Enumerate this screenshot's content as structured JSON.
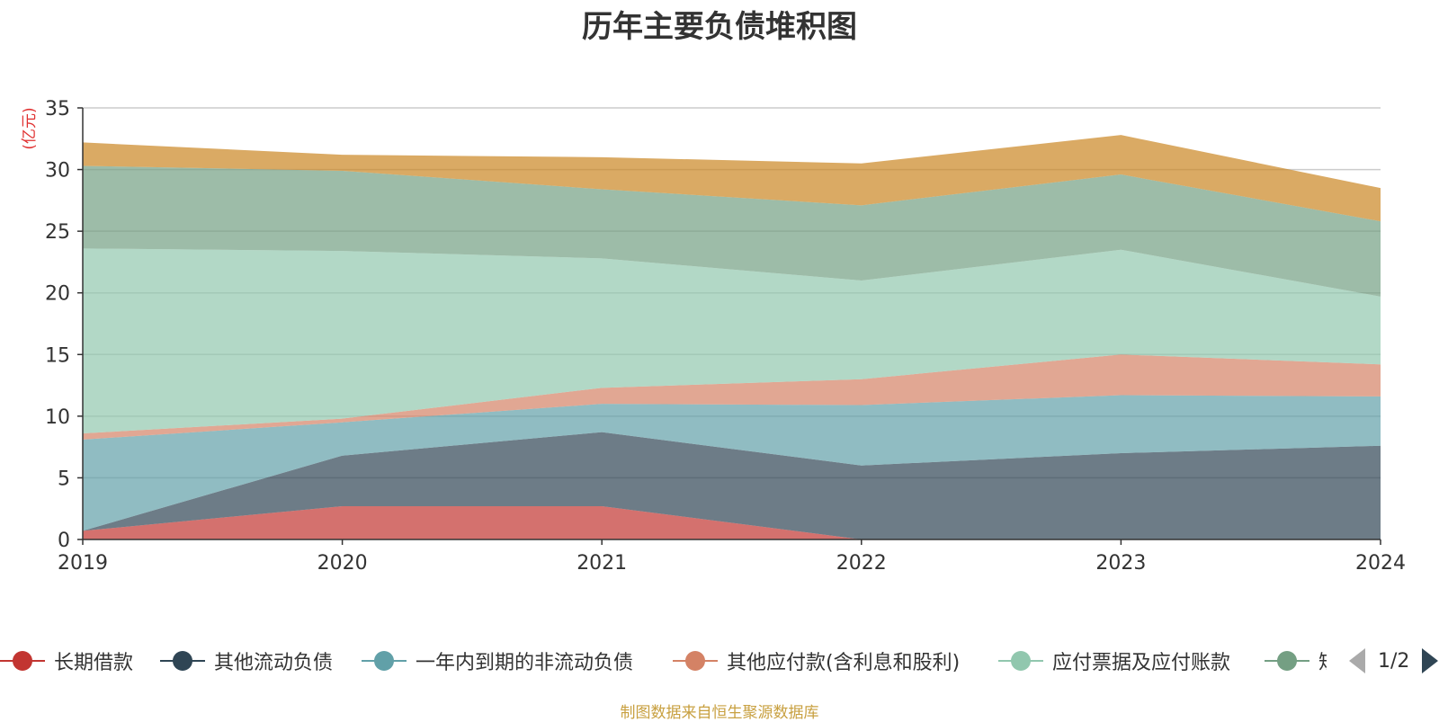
{
  "chart_data": {
    "type": "area",
    "stacked": true,
    "title": "历年主要负债堆积图",
    "ylabel": "(亿元)",
    "ylim": [
      0,
      35
    ],
    "yticks": [
      0,
      5,
      10,
      15,
      20,
      25,
      30,
      35
    ],
    "grid": true,
    "x": [
      "2019",
      "2020",
      "2021",
      "2022",
      "2023",
      "2024"
    ],
    "series": [
      {
        "name": "长期借款",
        "color": "#c23531",
        "values": [
          0.7,
          2.7,
          2.7,
          0.0,
          0.0,
          0.0
        ]
      },
      {
        "name": "其他流动负债",
        "color": "#2f4554",
        "values": [
          0.0,
          4.1,
          6.0,
          6.0,
          7.0,
          7.6
        ]
      },
      {
        "name": "一年内到期的非流动负债",
        "color": "#61a0a8",
        "values": [
          7.4,
          2.7,
          2.3,
          4.9,
          4.7,
          4.0
        ]
      },
      {
        "name": "其他应付款(含利息和股利)",
        "color": "#d48265",
        "values": [
          0.5,
          0.3,
          1.3,
          2.1,
          3.3,
          2.6
        ]
      },
      {
        "name": "应付票据及应付账款",
        "color": "#91c7ae",
        "values": [
          15.0,
          13.6,
          10.5,
          8.0,
          8.5,
          5.5
        ]
      },
      {
        "name": "短",
        "color": "#749f83",
        "values": [
          6.7,
          6.5,
          5.6,
          6.1,
          6.1,
          6.1
        ]
      },
      {
        "name": "",
        "color": "#ca8622",
        "values": [
          1.9,
          1.3,
          2.6,
          3.4,
          3.2,
          2.7
        ]
      }
    ],
    "legend": {
      "placement": "bottom",
      "page": "1/2"
    }
  },
  "source_note": "制图数据来自恒生聚源数据库"
}
